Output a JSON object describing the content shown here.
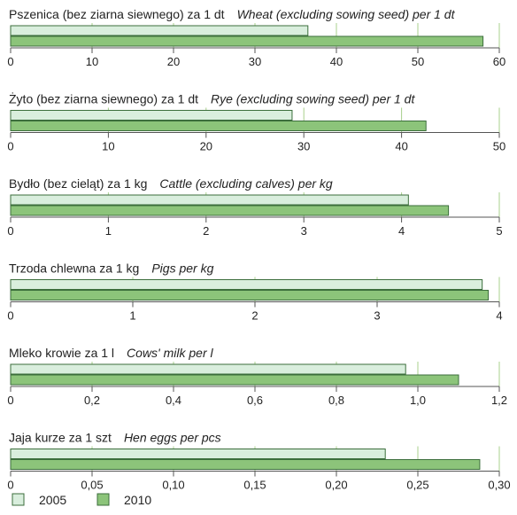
{
  "chart_data": [
    {
      "type": "bar",
      "title_pl": "Pszenica (bez ziarna siewnego) za 1 dt",
      "title_en": "Wheat (excluding sowing seed) per 1 dt",
      "series": [
        {
          "name": "2005",
          "value": 36.5
        },
        {
          "name": "2010",
          "value": 58.0
        }
      ],
      "xlim": [
        0,
        60
      ],
      "ticks": [
        "0",
        "10",
        "20",
        "30",
        "40",
        "50",
        "60"
      ]
    },
    {
      "type": "bar",
      "title_pl": "Żyto (bez ziarna siewnego) za 1 dt",
      "title_en": "Rye (excluding sowing seed) per 1 dt",
      "series": [
        {
          "name": "2005",
          "value": 28.8
        },
        {
          "name": "2010",
          "value": 42.5
        }
      ],
      "xlim": [
        0,
        50
      ],
      "ticks": [
        "0",
        "10",
        "20",
        "30",
        "40",
        "50"
      ]
    },
    {
      "type": "bar",
      "title_pl": "Bydło (bez cieląt) za 1 kg",
      "title_en": "Cattle (excluding calves) per kg",
      "series": [
        {
          "name": "2005",
          "value": 4.07
        },
        {
          "name": "2010",
          "value": 4.48
        }
      ],
      "xlim": [
        0,
        5
      ],
      "ticks": [
        "0",
        "1",
        "2",
        "3",
        "4",
        "5"
      ]
    },
    {
      "type": "bar",
      "title_pl": "Trzoda chlewna za 1 kg",
      "title_en": "Pigs per kg",
      "series": [
        {
          "name": "2005",
          "value": 3.86
        },
        {
          "name": "2010",
          "value": 3.91
        }
      ],
      "xlim": [
        0,
        4
      ],
      "ticks": [
        "0",
        "1",
        "2",
        "3",
        "4"
      ]
    },
    {
      "type": "bar",
      "title_pl": "Mleko krowie za 1 l",
      "title_en": "Cows' milk per l",
      "series": [
        {
          "name": "2005",
          "value": 0.97
        },
        {
          "name": "2010",
          "value": 1.1
        }
      ],
      "xlim": [
        0,
        1.2
      ],
      "ticks": [
        "0",
        "0,2",
        "0,4",
        "0,6",
        "0,8",
        "1,0",
        "1,2"
      ]
    },
    {
      "type": "bar",
      "title_pl": "Jaja kurze za 1 szt",
      "title_en": "Hen eggs per pcs",
      "series": [
        {
          "name": "2005",
          "value": 0.23
        },
        {
          "name": "2010",
          "value": 0.288
        }
      ],
      "xlim": [
        0,
        0.3
      ],
      "ticks": [
        "0",
        "0,05",
        "0,10",
        "0,15",
        "0,20",
        "0,25",
        "0,30"
      ]
    }
  ],
  "legend": [
    {
      "label": "2005",
      "color": "#d9eedd"
    },
    {
      "label": "2010",
      "color": "#8cc47a"
    }
  ],
  "colors": {
    "bar_stroke": "#3c6e3c",
    "axis": "#555555",
    "grid": "#a8d08c"
  }
}
